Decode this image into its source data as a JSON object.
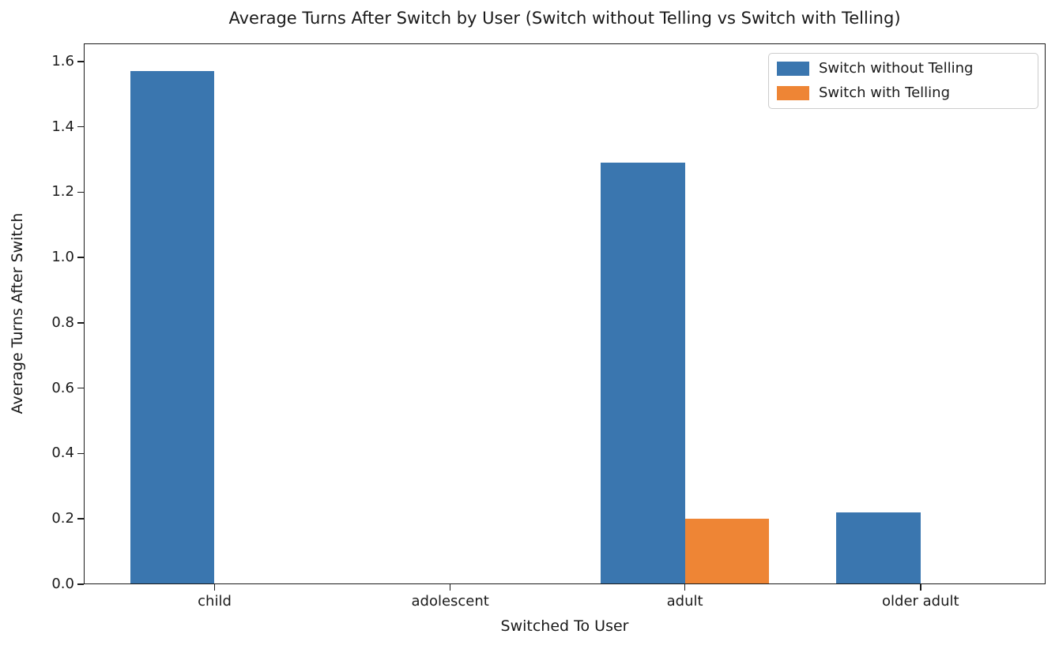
{
  "chart_data": {
    "type": "bar",
    "title": "Average Turns After Switch by User (Switch without Telling vs Switch with Telling)",
    "xlabel": "Switched To User",
    "ylabel": "Average Turns After Switch",
    "categories": [
      "child",
      "adolescent",
      "adult",
      "older adult"
    ],
    "series": [
      {
        "name": "Switch without Telling",
        "color": "#3A76AF",
        "values": [
          1.57,
          0,
          1.29,
          0.22
        ]
      },
      {
        "name": "Switch with Telling",
        "color": "#EE8535",
        "values": [
          0,
          0,
          0.2,
          0
        ]
      }
    ],
    "ylim": [
      0,
      1.655
    ],
    "yticks": [
      "0.0",
      "0.2",
      "0.4",
      "0.6",
      "0.8",
      "1.0",
      "1.2",
      "1.4",
      "1.6"
    ],
    "grid": false,
    "legend_position": "upper right"
  }
}
